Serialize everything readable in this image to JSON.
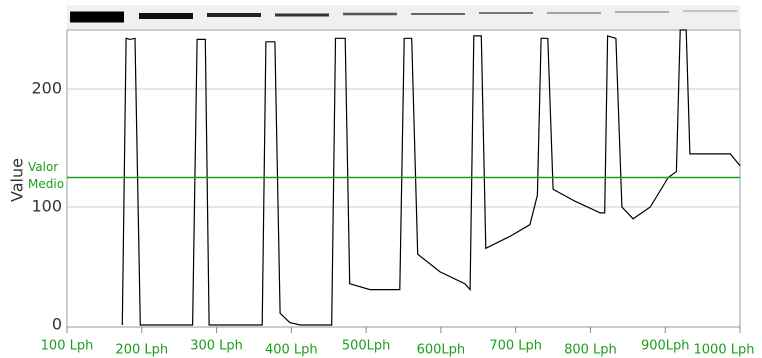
{
  "chart_data": {
    "type": "line",
    "y_label": "Value",
    "x": [
      174,
      179,
      184,
      191,
      198,
      268,
      274,
      285,
      290,
      361,
      366,
      378,
      385,
      398,
      412,
      445,
      454,
      459,
      472,
      478,
      505,
      539,
      545,
      551,
      561,
      569,
      599,
      632,
      639,
      644,
      654,
      660,
      692,
      719,
      729,
      734,
      743,
      750,
      779,
      813,
      819,
      823,
      834,
      842,
      857,
      880,
      904,
      915,
      920,
      928,
      933,
      960,
      987,
      1000
    ],
    "series": [
      {
        "color": "#000000",
        "values": [
          0,
          243,
          242,
          243,
          0,
          0,
          242,
          242,
          0,
          0,
          240,
          240,
          10,
          2,
          0,
          0,
          0,
          243,
          243,
          35,
          30,
          30,
          30,
          243,
          243,
          60,
          45,
          35,
          30,
          245,
          245,
          65,
          75,
          85,
          110,
          243,
          243,
          115,
          105,
          95,
          95,
          245,
          243,
          100,
          90,
          100,
          125,
          130,
          250,
          250,
          145,
          145,
          145,
          135
        ]
      }
    ],
    "xlim": [
      100,
      1000
    ],
    "xticks": [
      {
        "value": 100,
        "label": "100 Lph"
      },
      {
        "value": 200,
        "label": "200 Lph"
      },
      {
        "value": 300,
        "label": "300 Lph"
      },
      {
        "value": 400,
        "label": "400 Lph"
      },
      {
        "value": 500,
        "label": "500Lph"
      },
      {
        "value": 600,
        "label": "600Lph"
      },
      {
        "value": 700,
        "label": "700 Lph"
      },
      {
        "value": 800,
        "label": "800 Lph"
      },
      {
        "value": 900,
        "label": "900Lph"
      },
      {
        "value": 1000,
        "label": "1000 Lph"
      }
    ],
    "ylim": [
      0,
      250
    ],
    "yticks": [
      0,
      100,
      200
    ],
    "grid": true,
    "reference_line": {
      "value": 125,
      "color": "#1aa01a",
      "label_lines": [
        "Valor",
        "Medio"
      ]
    }
  }
}
